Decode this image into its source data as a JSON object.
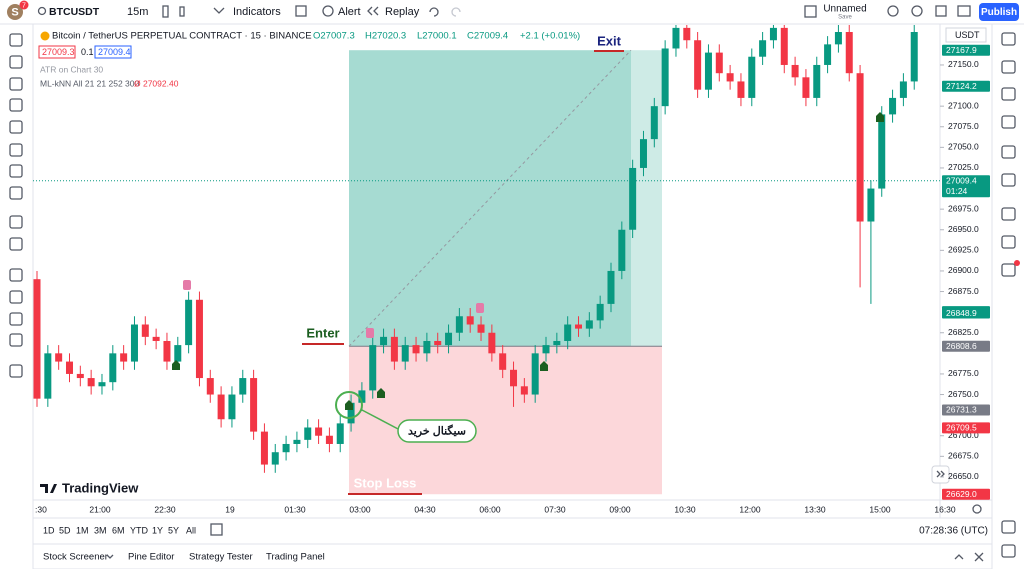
{
  "toolbar": {
    "avatar": "S",
    "badge": "7",
    "symbol": "BTCUSDT",
    "interval": "15m",
    "indicators": "Indicators",
    "alert": "Alert",
    "replay": "Replay",
    "layout_name": "Unnamed",
    "layout_status": "Save",
    "publish": "Publish"
  },
  "legend": {
    "title": "Bitcoin / TetherUS PERPETUAL CONTRACT · 15 · BINANCE",
    "o": "O27007.3",
    "h": "H27020.3",
    "l": "L27000.1",
    "c": "C27009.4",
    "change": "+2.1 (+0.01%)",
    "bid": "27009.3",
    "spread": "0.1",
    "ask": "27009.4",
    "atr": "ATR on Chart 30",
    "knn": "ML-kNN All 21 21 252 300",
    "knn_value": "Ø 27092.40"
  },
  "chart": {
    "currency": "USDT",
    "logo": "TradingView",
    "ylim": [
      26622,
      27198.5
    ],
    "up_color": "#089981",
    "down_color": "#f23645",
    "open": [
      26890,
      26745,
      26800,
      26790,
      26775,
      26770,
      26760,
      26765,
      26800,
      26790,
      26835,
      26820,
      26815,
      26790,
      26810,
      26865,
      26770,
      26750,
      26720,
      26750,
      26770,
      26705,
      26665,
      26680,
      26690,
      26695,
      26710,
      26700,
      26690,
      26715,
      26740,
      26755,
      26810,
      26820,
      26790,
      26810,
      26800,
      26815,
      26810,
      26825,
      26845,
      26835,
      26825,
      26800,
      26780,
      26760,
      26750,
      26800,
      26810,
      26815,
      26835,
      26830,
      26840,
      26860,
      26900,
      26950,
      27025,
      27060,
      27100,
      27170,
      27195,
      27180,
      27120,
      27165,
      27140,
      27130,
      27110,
      27160,
      27180,
      27195,
      27150,
      27135,
      27110,
      27150,
      27175,
      27190,
      27140,
      26960,
      27000,
      27090,
      27110,
      27130
    ],
    "high": [
      26900,
      26810,
      26810,
      26800,
      26785,
      26780,
      26775,
      26810,
      26810,
      26845,
      26845,
      26830,
      26825,
      26820,
      26875,
      26875,
      26780,
      26760,
      26760,
      26780,
      26780,
      26715,
      26690,
      26700,
      26705,
      26720,
      26720,
      26710,
      26725,
      26750,
      26765,
      26820,
      26830,
      26830,
      26820,
      26820,
      26825,
      26825,
      26835,
      26855,
      26855,
      26845,
      26835,
      26810,
      26790,
      26770,
      26810,
      26820,
      26825,
      26845,
      26845,
      26850,
      26870,
      26910,
      26960,
      27035,
      27070,
      27110,
      27180,
      27205,
      27205,
      27190,
      27175,
      27175,
      27150,
      27140,
      27170,
      27190,
      27205,
      27205,
      27160,
      27145,
      27160,
      27185,
      27200,
      27200,
      27150,
      27010,
      27100,
      27120,
      27140,
      27200
    ],
    "low": [
      26735,
      26735,
      26780,
      26765,
      26760,
      26750,
      26750,
      26755,
      26780,
      26780,
      26810,
      26805,
      26780,
      26780,
      26800,
      26760,
      26740,
      26710,
      26710,
      26740,
      26695,
      26655,
      26655,
      26670,
      26680,
      26685,
      26690,
      26680,
      26680,
      26705,
      26730,
      26745,
      26800,
      26780,
      26780,
      26790,
      26790,
      26800,
      26800,
      26815,
      26825,
      26815,
      26790,
      26770,
      26735,
      26740,
      26740,
      26790,
      26800,
      26805,
      26820,
      26820,
      26830,
      26850,
      26890,
      26940,
      27015,
      27050,
      27090,
      27160,
      27170,
      27110,
      27110,
      27130,
      27120,
      27100,
      27100,
      27150,
      27170,
      27140,
      27125,
      27100,
      27100,
      27140,
      27165,
      27130,
      26880,
      26860,
      26990,
      27080,
      27100,
      27120
    ],
    "close": [
      26745,
      26800,
      26790,
      26775,
      26770,
      26760,
      26765,
      26800,
      26790,
      26835,
      26820,
      26815,
      26790,
      26810,
      26865,
      26770,
      26750,
      26720,
      26750,
      26770,
      26705,
      26665,
      26680,
      26690,
      26695,
      26710,
      26700,
      26690,
      26715,
      26740,
      26755,
      26810,
      26820,
      26790,
      26810,
      26800,
      26815,
      26810,
      26825,
      26845,
      26835,
      26825,
      26800,
      26780,
      26760,
      26750,
      26800,
      26810,
      26815,
      26835,
      26830,
      26840,
      26860,
      26900,
      26950,
      27025,
      27060,
      27100,
      27170,
      27195,
      27180,
      27120,
      27165,
      27140,
      27130,
      27110,
      27160,
      27180,
      27195,
      27150,
      27135,
      27110,
      27150,
      27175,
      27190,
      27140,
      26960,
      27000,
      27090,
      27110,
      27130,
      27190
    ],
    "yticks": [
      {
        "value": 27150,
        "label": "27150.0"
      },
      {
        "value": 27100,
        "label": "27100.0"
      },
      {
        "value": 27075,
        "label": "27075.0"
      },
      {
        "value": 27050,
        "label": "27050.0"
      },
      {
        "value": 27025,
        "label": "27025.0"
      },
      {
        "value": 26975,
        "label": "26975.0"
      },
      {
        "value": 26950,
        "label": "26950.0"
      },
      {
        "value": 26925,
        "label": "26925.0"
      },
      {
        "value": 26900,
        "label": "26900.0"
      },
      {
        "value": 26875,
        "label": "26875.0"
      },
      {
        "value": 26825,
        "label": "26825.0"
      },
      {
        "value": 26775,
        "label": "26775.0"
      },
      {
        "value": 26750,
        "label": "26750.0"
      },
      {
        "value": 26700,
        "label": "26700.0"
      },
      {
        "value": 26675,
        "label": "26675.0"
      },
      {
        "value": 26650,
        "label": "26650.0"
      }
    ],
    "price_badges": [
      {
        "value": 27167.9,
        "label": "27167.9",
        "color": "#089981"
      },
      {
        "value": 27124.2,
        "label": "27124.2",
        "color": "#089981"
      },
      {
        "value": 27009.4,
        "label": "27009.4",
        "sub": "01:24",
        "color": "#089981"
      },
      {
        "value": 26850.6,
        "label": "26850.6",
        "color": "#089981"
      },
      {
        "value": 26848.9,
        "label": "26848.9",
        "color": "#089981"
      },
      {
        "value": 26808.6,
        "label": "26808.6",
        "color": "#787b86"
      },
      {
        "value": 26731.3,
        "label": "26731.3",
        "color": "#787b86"
      },
      {
        "value": 26709.5,
        "label": "26709.5",
        "color": "#f23645"
      },
      {
        "value": 26629.0,
        "label": "26629.0",
        "color": "#f23645"
      }
    ],
    "time_labels": [
      ":30",
      "21:00",
      "22:30",
      "19",
      "01:30",
      "03:00",
      "04:30",
      "06:00",
      "07:30",
      "09:00",
      "10:30",
      "12:00",
      "13:30",
      "15:00",
      "16:30"
    ],
    "position": {
      "entry": 26808.6,
      "target": 27167.9,
      "stop": 26629.0
    },
    "annotations": {
      "enter": "Enter",
      "exit": "Exit",
      "stop_loss": "Stop Loss",
      "buy_signal": "سیگنال خرید"
    }
  },
  "range_bar": {
    "ranges": [
      "1D",
      "5D",
      "1M",
      "3M",
      "6M",
      "YTD",
      "1Y",
      "5Y",
      "All"
    ],
    "clock": "07:28:36 (UTC)"
  },
  "bottom_panel": {
    "tabs": [
      "Stock Screener",
      "Pine Editor",
      "Strategy Tester",
      "Trading Panel"
    ]
  }
}
